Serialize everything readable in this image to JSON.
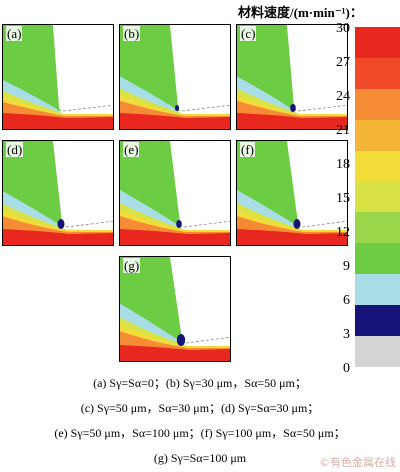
{
  "colorbar": {
    "title": "材料速度/(m·min⁻¹)：",
    "ticks": [
      "30",
      "27",
      "24",
      "21",
      "18",
      "15",
      "12",
      "9",
      "6",
      "3",
      "0"
    ],
    "bands": [
      "#e8271e",
      "#f04a2a",
      "#f58c35",
      "#f5b537",
      "#f2dc3a",
      "#d8e245",
      "#9bd74a",
      "#6ccd44",
      "#a8dde6",
      "#161478",
      "#d4d4d4"
    ]
  },
  "panels": [
    {
      "label": "(a)"
    },
    {
      "label": "(b)"
    },
    {
      "label": "(c)"
    },
    {
      "label": "(d)"
    },
    {
      "label": "(e)"
    },
    {
      "label": "(f)"
    },
    {
      "label": "(g)"
    }
  ],
  "captions": [
    "(a) Sγ=Sα=0；(b) Sγ=30 μm，Sα=50 μm；",
    "(c) Sγ=50 μm，Sα=30 μm；(d) Sγ=Sα=30 μm；",
    "(e) Sγ=50 μm，Sα=100 μm；(f) Sγ=100 μm，Sα=50 μm；",
    "(g) Sγ=Sα=100 μm"
  ],
  "watermark": "©有色金属在线"
}
